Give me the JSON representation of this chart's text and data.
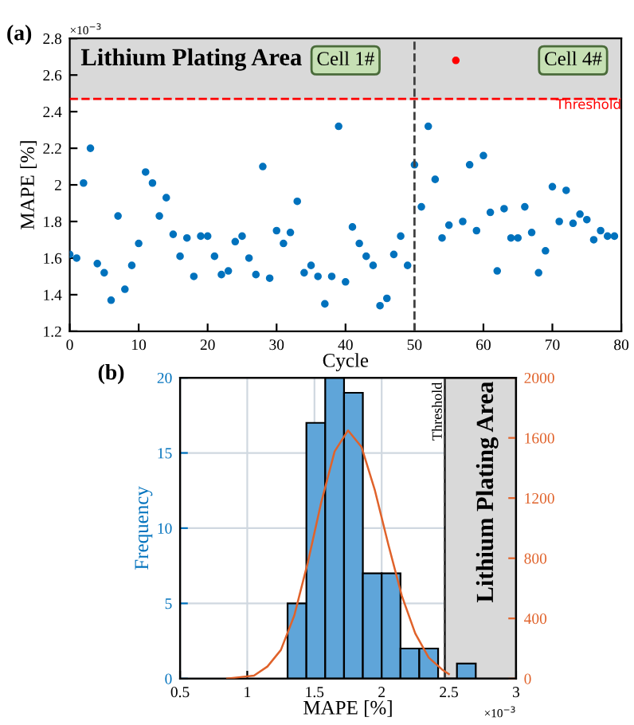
{
  "chart_data": [
    {
      "type": "scatter",
      "xlabel": "Cycle",
      "ylabel": "MAPE [%]",
      "xlim": [
        0,
        80
      ],
      "xticks": [
        0,
        10,
        20,
        30,
        40,
        50,
        60,
        70,
        80
      ],
      "ylim": [
        1.2,
        2.8
      ],
      "yticks": [
        1.2,
        1.4,
        1.6,
        1.8,
        2,
        2.2,
        2.4,
        2.6,
        2.8
      ],
      "grid": false,
      "marker": "circle",
      "series": [
        {
          "color": "#0072bd",
          "x": [
            0,
            1,
            2,
            3,
            4,
            5,
            6,
            7,
            8,
            9,
            10,
            11,
            12,
            13,
            14,
            15,
            16,
            17,
            18,
            19,
            20,
            21,
            22,
            23,
            24,
            25,
            26,
            27,
            28,
            29,
            30,
            31,
            32,
            33,
            34,
            35,
            36,
            37,
            38,
            39,
            40,
            41,
            42,
            43,
            44,
            45,
            46,
            47,
            48,
            49,
            50,
            51,
            52,
            53,
            54,
            55,
            57,
            58,
            59,
            60,
            61,
            62,
            63,
            64,
            65,
            66,
            67,
            68,
            69,
            70,
            71,
            72,
            73,
            74,
            75,
            76,
            77,
            78,
            79
          ],
          "values": [
            1.62,
            1.6,
            2.01,
            2.2,
            1.57,
            1.52,
            1.37,
            1.83,
            1.43,
            1.56,
            1.68,
            2.07,
            2.01,
            1.83,
            1.93,
            1.73,
            1.61,
            1.71,
            1.5,
            1.72,
            1.72,
            1.61,
            1.51,
            1.53,
            1.69,
            1.72,
            1.6,
            1.51,
            2.1,
            1.49,
            1.75,
            1.68,
            1.74,
            1.91,
            1.52,
            1.56,
            1.5,
            1.35,
            1.5,
            2.32,
            1.47,
            1.77,
            1.68,
            1.61,
            1.56,
            1.34,
            1.38,
            1.62,
            1.72,
            1.56,
            2.11,
            1.88,
            2.32,
            2.03,
            1.71,
            1.78,
            1.8,
            2.11,
            1.75,
            2.16,
            1.85,
            1.53,
            1.87,
            1.71,
            1.71,
            1.88,
            1.74,
            1.52,
            1.64,
            1.99,
            1.8,
            1.97,
            1.79,
            1.84,
            1.81,
            1.7,
            1.75,
            1.72,
            1.72
          ]
        },
        {
          "color": "#ff0000",
          "x": [
            56
          ],
          "values": [
            2.68
          ]
        }
      ],
      "bands": [
        {
          "axis": "y",
          "from": 2.47,
          "to": 2.8,
          "label": "Lithium Plating Area",
          "color": "#d9d9d9"
        }
      ],
      "ref_lines": [
        {
          "axis": "y",
          "value": 2.47,
          "label": "Threshold",
          "color": "#ff0000",
          "line_style": "dashed"
        },
        {
          "axis": "x",
          "value": 50,
          "label": null,
          "color": "#404040",
          "line_style": "dashed"
        }
      ],
      "annotations": [
        "(a)",
        "×10$^{−3}$",
        {
          "text": "Cell 1#",
          "x": 40,
          "y": 2.68
        },
        {
          "text": "Cell 4#",
          "x": 73,
          "y": 2.68
        }
      ]
    },
    {
      "type": "histogram",
      "xlabel": "MAPE [%]",
      "ylabel": "Frequency",
      "xlim": [
        0.5,
        3
      ],
      "xticks": [
        0.5,
        1,
        1.5,
        2,
        2.5,
        3
      ],
      "ylim": [
        0,
        20
      ],
      "yticks": [
        0,
        5,
        10,
        15,
        20
      ],
      "y2lim": [
        0,
        2000
      ],
      "y2ticks": [
        0,
        400,
        800,
        1200,
        1600,
        2000
      ],
      "grid": true,
      "series": [
        {
          "type": "histogram",
          "color": "#5fa5d9",
          "bins": [
            1.3,
            1.44,
            1.58,
            1.72,
            1.86,
            2.0,
            2.14,
            2.28,
            2.42,
            2.56,
            2.7
          ],
          "values": [
            5,
            17,
            20,
            19,
            7,
            7,
            2,
            2,
            0,
            1
          ]
        },
        {
          "type": "line",
          "axis": "y2",
          "color": "#e0622a",
          "x": [
            0.85,
            0.95,
            1.05,
            1.15,
            1.25,
            1.35,
            1.45,
            1.55,
            1.65,
            1.75,
            1.85,
            1.95,
            2.05,
            2.15,
            2.25,
            2.35,
            2.45,
            2.5
          ],
          "values": [
            0,
            10,
            20,
            80,
            190,
            420,
            770,
            1170,
            1510,
            1650,
            1540,
            1250,
            890,
            550,
            300,
            140,
            60,
            30
          ]
        }
      ],
      "bands": [
        {
          "axis": "x",
          "from": 2.47,
          "to": 3,
          "label": "Lithium Plating Area",
          "color": "#d9d9d9"
        }
      ],
      "ref_lines": [
        {
          "axis": "x",
          "value": 2.47,
          "label": "Threshold",
          "color": "#404040",
          "line_style": "dashed"
        }
      ],
      "annotations": [
        "(b)",
        "×10$^{−3}$"
      ]
    }
  ]
}
